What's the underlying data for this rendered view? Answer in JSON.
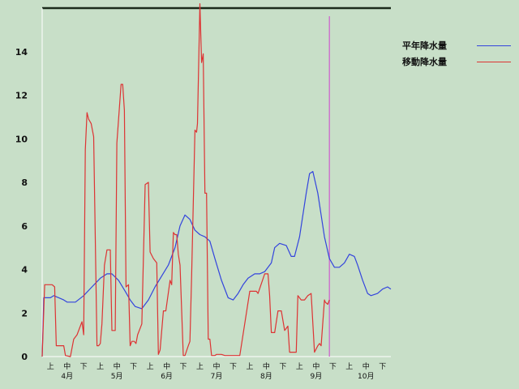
{
  "chart_data": {
    "type": "line",
    "ylim": [
      0,
      16
    ],
    "y_ticks": [
      0,
      2,
      4,
      6,
      8,
      10,
      12,
      14
    ],
    "x_range": [
      0,
      21
    ],
    "x_ticks": [
      {
        "x": 0.5,
        "label": "上"
      },
      {
        "x": 1.5,
        "label": "中"
      },
      {
        "x": 2.5,
        "label": "下"
      },
      {
        "x": 3.5,
        "label": "上"
      },
      {
        "x": 4.5,
        "label": "中"
      },
      {
        "x": 5.5,
        "label": "下"
      },
      {
        "x": 6.5,
        "label": "上"
      },
      {
        "x": 7.5,
        "label": "中"
      },
      {
        "x": 8.5,
        "label": "下"
      },
      {
        "x": 9.5,
        "label": "上"
      },
      {
        "x": 10.5,
        "label": "中"
      },
      {
        "x": 11.5,
        "label": "下"
      },
      {
        "x": 12.5,
        "label": "上"
      },
      {
        "x": 13.5,
        "label": "中"
      },
      {
        "x": 14.5,
        "label": "下"
      },
      {
        "x": 15.5,
        "label": "上"
      },
      {
        "x": 16.5,
        "label": "中"
      },
      {
        "x": 17.5,
        "label": "下"
      },
      {
        "x": 18.5,
        "label": "上"
      },
      {
        "x": 19.5,
        "label": "中"
      },
      {
        "x": 20.5,
        "label": "下"
      }
    ],
    "months": [
      {
        "x": 1.5,
        "label": "4月"
      },
      {
        "x": 4.5,
        "label": "5月"
      },
      {
        "x": 7.5,
        "label": "6月"
      },
      {
        "x": 10.5,
        "label": "7月"
      },
      {
        "x": 13.5,
        "label": "8月"
      },
      {
        "x": 16.5,
        "label": "9月"
      },
      {
        "x": 19.5,
        "label": "10月"
      }
    ],
    "vline_x": 17.3,
    "grid": false,
    "legend_position": "right",
    "series": [
      {
        "name": "平年降水量",
        "color": "#3344dd",
        "x": [
          0,
          0.1,
          0.5,
          0.7,
          1.0,
          1.3,
          1.5,
          2.0,
          2.5,
          3.0,
          3.5,
          3.9,
          4.2,
          4.6,
          5.0,
          5.3,
          5.6,
          6.0,
          6.4,
          6.8,
          7.2,
          7.6,
          8.0,
          8.3,
          8.6,
          8.9,
          9.2,
          9.5,
          9.8,
          10.1,
          10.4,
          10.8,
          11.2,
          11.5,
          11.8,
          12.1,
          12.4,
          12.8,
          13.1,
          13.4,
          13.8,
          14.0,
          14.3,
          14.7,
          15.0,
          15.2,
          15.5,
          15.9,
          16.1,
          16.3,
          16.6,
          16.8,
          17.0,
          17.3,
          17.6,
          17.9,
          18.2,
          18.5,
          18.8,
          19.0,
          19.3,
          19.6,
          19.8,
          20.2,
          20.5,
          20.8,
          21.0
        ],
        "values": [
          0,
          2.7,
          2.7,
          2.8,
          2.7,
          2.6,
          2.5,
          2.5,
          2.8,
          3.2,
          3.6,
          3.8,
          3.8,
          3.5,
          3.0,
          2.6,
          2.3,
          2.2,
          2.6,
          3.2,
          3.7,
          4.2,
          5.0,
          6.0,
          6.5,
          6.3,
          5.8,
          5.6,
          5.5,
          5.3,
          4.5,
          3.5,
          2.7,
          2.6,
          2.9,
          3.3,
          3.6,
          3.8,
          3.8,
          3.9,
          4.3,
          5.0,
          5.2,
          5.1,
          4.6,
          4.6,
          5.5,
          7.5,
          8.4,
          8.5,
          7.5,
          6.5,
          5.5,
          4.5,
          4.1,
          4.1,
          4.3,
          4.7,
          4.6,
          4.2,
          3.5,
          2.9,
          2.8,
          2.9,
          3.1,
          3.2,
          3.1
        ]
      },
      {
        "name": "移動降水量",
        "color": "#dd3333",
        "x": [
          0,
          0.15,
          0.25,
          0.6,
          0.75,
          0.85,
          1.3,
          1.4,
          1.7,
          1.9,
          2.1,
          2.4,
          2.5,
          2.6,
          2.7,
          2.8,
          2.95,
          3.1,
          3.3,
          3.4,
          3.5,
          3.6,
          3.75,
          3.9,
          4.1,
          4.2,
          4.4,
          4.5,
          4.75,
          4.85,
          4.95,
          5.05,
          5.2,
          5.3,
          5.4,
          5.55,
          5.65,
          5.75,
          6.0,
          6.2,
          6.4,
          6.5,
          6.7,
          6.9,
          7.0,
          7.1,
          7.3,
          7.45,
          7.7,
          7.8,
          7.9,
          8.0,
          8.1,
          8.2,
          8.3,
          8.5,
          8.6,
          8.8,
          8.9,
          9.0,
          9.2,
          9.3,
          9.35,
          9.5,
          9.6,
          9.7,
          9.8,
          9.9,
          10.0,
          10.1,
          10.2,
          10.3,
          10.4,
          10.5,
          10.6,
          10.7,
          10.8,
          11.0,
          11.1,
          11.3,
          11.5,
          11.9,
          12.5,
          12.7,
          12.9,
          13.0,
          13.4,
          13.5,
          13.6,
          13.7,
          13.8,
          14.0,
          14.2,
          14.4,
          14.6,
          14.8,
          14.9,
          15.1,
          15.3,
          15.4,
          15.6,
          15.8,
          16.0,
          16.2,
          16.4,
          16.6,
          16.7,
          16.8,
          17.0,
          17.05,
          17.2,
          17.3
        ],
        "values": [
          0,
          3.3,
          3.3,
          3.3,
          3.2,
          0.5,
          0.5,
          0.05,
          0,
          0.8,
          1.0,
          1.6,
          1.0,
          9.5,
          11.2,
          10.9,
          10.7,
          10.1,
          0.5,
          0.5,
          0.6,
          1.5,
          4.2,
          4.9,
          4.9,
          1.2,
          1.2,
          9.8,
          12.5,
          12.5,
          11.3,
          3.2,
          3.3,
          0.5,
          0.7,
          0.7,
          0.6,
          1.0,
          1.5,
          7.9,
          8.0,
          4.8,
          4.5,
          4.3,
          0.1,
          0.3,
          2.1,
          2.1,
          3.5,
          3.3,
          5.7,
          5.6,
          5.6,
          4.7,
          4.2,
          0.05,
          0.05,
          0.5,
          0.7,
          3.7,
          10.4,
          10.3,
          10.7,
          16.2,
          13.5,
          13.9,
          7.5,
          7.5,
          0.8,
          0.8,
          0.05,
          0.05,
          0.05,
          0.1,
          0.1,
          0.1,
          0.1,
          0.05,
          0.05,
          0.05,
          0.05,
          0.05,
          3.0,
          3.0,
          3.0,
          2.9,
          3.8,
          3.8,
          3.8,
          2.8,
          1.1,
          1.1,
          2.1,
          2.1,
          1.2,
          1.4,
          0.2,
          0.2,
          0.2,
          2.8,
          2.6,
          2.6,
          2.8,
          2.9,
          0.2,
          0.5,
          0.6,
          0.5,
          2.6,
          2.5,
          2.4,
          2.6
        ]
      }
    ]
  }
}
